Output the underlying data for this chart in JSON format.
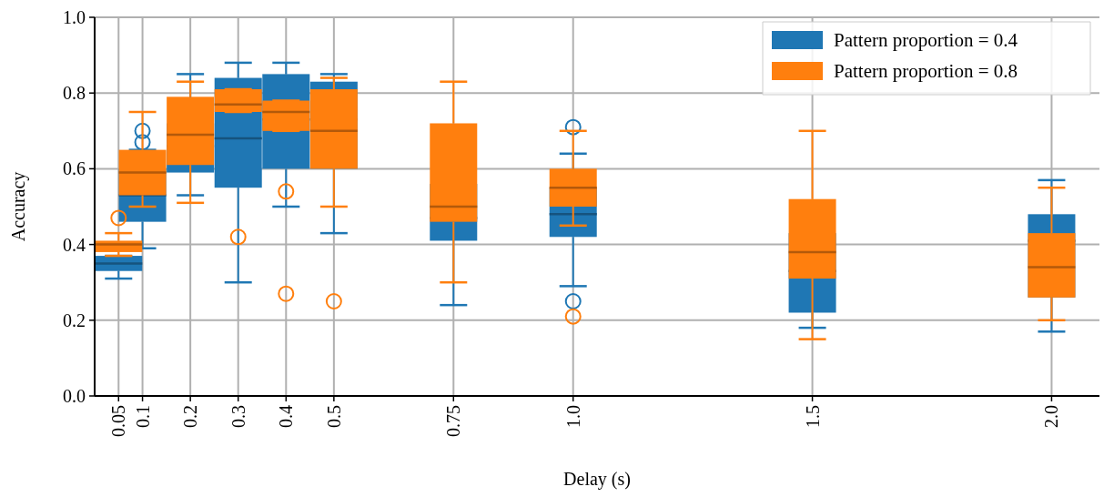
{
  "chart_data": {
    "type": "box",
    "xlabel": "Delay (s)",
    "ylabel": "Accuracy",
    "xlim": [
      0,
      2.1
    ],
    "xticks": [
      0.05,
      0.1,
      0.2,
      0.3,
      0.4,
      0.5,
      0.75,
      {
        "value": 1,
        "label": "1.0"
      },
      1.5,
      {
        "value": 2,
        "label": "2.0"
      }
    ],
    "ylim": [
      0,
      1
    ],
    "yticks": [
      {
        "value": 0,
        "label": "0.0"
      },
      0.2,
      0.4,
      0.6,
      0.8,
      {
        "value": 1,
        "label": "1.0"
      }
    ],
    "grid": true,
    "legend": "top right",
    "series": [
      {
        "name": "Pattern proportion = 0.4",
        "color": "#1f77b4",
        "x": [
          0.05,
          0.1,
          0.2,
          0.3,
          0.4,
          0.5,
          0.75,
          1,
          1.5,
          2
        ],
        "boxes": [
          {
            "low": 0.31,
            "q1": 0.33,
            "median": 0.35,
            "q3": 0.37,
            "high": 0.37
          },
          {
            "low": 0.39,
            "q1": 0.46,
            "median": 0.53,
            "q3": 0.6,
            "high": 0.65,
            "outliers": [
              0.67,
              0.7
            ]
          },
          {
            "low": 0.53,
            "q1": 0.59,
            "median": 0.66,
            "q3": 0.72,
            "high": 0.85
          },
          {
            "low": 0.3,
            "q1": 0.55,
            "median": 0.68,
            "q3": 0.84,
            "high": 0.88
          },
          {
            "low": 0.5,
            "q1": 0.6,
            "median": 0.73,
            "q3": 0.85,
            "high": 0.88
          },
          {
            "low": 0.43,
            "q1": 0.6,
            "median": 0.73,
            "q3": 0.83,
            "high": 0.85
          },
          {
            "low": 0.24,
            "q1": 0.41,
            "median": 0.47,
            "q3": 0.56,
            "high": 0.6
          },
          {
            "low": 0.29,
            "q1": 0.42,
            "median": 0.48,
            "q3": 0.55,
            "high": 0.64,
            "outliers": [
              0.25,
              0.71
            ]
          },
          {
            "low": 0.18,
            "q1": 0.22,
            "median": 0.33,
            "q3": 0.43,
            "high": 0.5
          },
          {
            "low": 0.17,
            "q1": 0.26,
            "median": 0.41,
            "q3": 0.48,
            "high": 0.57
          }
        ]
      },
      {
        "name": "Pattern proportion = 0.8",
        "color": "#ff7f0e",
        "x": [
          0.05,
          0.1,
          0.2,
          0.3,
          0.4,
          0.5,
          0.75,
          1,
          1.5,
          2
        ],
        "boxes": [
          {
            "low": 0.37,
            "q1": 0.38,
            "median": 0.4,
            "q3": 0.41,
            "high": 0.43,
            "outliers": [
              0.47
            ]
          },
          {
            "low": 0.5,
            "q1": 0.53,
            "median": 0.59,
            "q3": 0.65,
            "high": 0.75
          },
          {
            "low": 0.51,
            "q1": 0.61,
            "median": 0.69,
            "q3": 0.79,
            "high": 0.83
          },
          {
            "low": 0.75,
            "q1": 0.75,
            "median": 0.77,
            "q3": 0.81,
            "high": 0.81,
            "outliers": [
              0.42
            ]
          },
          {
            "low": 0.7,
            "q1": 0.7,
            "median": 0.75,
            "q3": 0.78,
            "high": 0.78,
            "outliers": [
              0.27,
              0.54
            ]
          },
          {
            "low": 0.5,
            "q1": 0.6,
            "median": 0.7,
            "q3": 0.81,
            "high": 0.84,
            "outliers": [
              0.25
            ]
          },
          {
            "low": 0.3,
            "q1": 0.46,
            "median": 0.5,
            "q3": 0.72,
            "high": 0.83
          },
          {
            "low": 0.45,
            "q1": 0.5,
            "median": 0.55,
            "q3": 0.6,
            "high": 0.7,
            "outliers": [
              0.21
            ]
          },
          {
            "low": 0.15,
            "q1": 0.31,
            "median": 0.38,
            "q3": 0.52,
            "high": 0.7
          },
          {
            "low": 0.2,
            "q1": 0.26,
            "median": 0.34,
            "q3": 0.43,
            "high": 0.55
          }
        ]
      }
    ]
  }
}
